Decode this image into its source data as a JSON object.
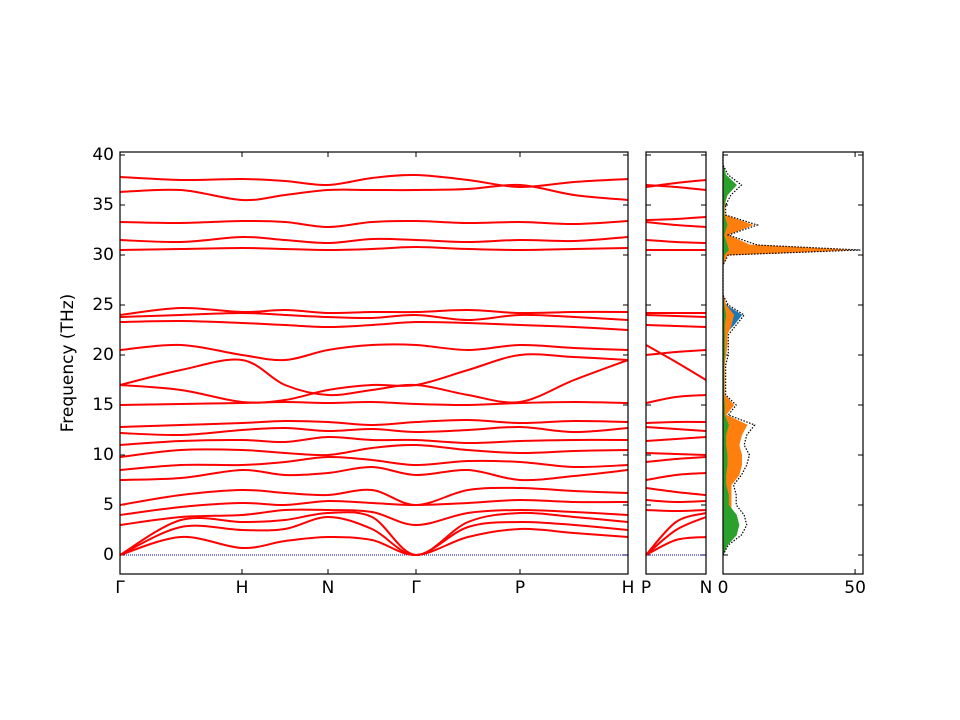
{
  "chart_data": [
    {
      "type": "line",
      "ylabel": "Frequency (THz)",
      "color": "#ff0000",
      "zero_line_color": "#0000cc",
      "x": [
        0,
        0.61,
        1.22,
        1.65,
        2.08,
        2.52,
        2.96,
        3.48,
        4.0,
        4.54,
        5.08
      ],
      "xlim": [
        0,
        5.08
      ],
      "xticks": [
        {
          "value": 0,
          "label": "Γ"
        },
        {
          "value": 1.22,
          "label": "H"
        },
        {
          "value": 2.08,
          "label": "N"
        },
        {
          "value": 2.96,
          "label": "Γ"
        },
        {
          "value": 4.0,
          "label": "P"
        },
        {
          "value": 5.08,
          "label": "H"
        }
      ],
      "ylim": [
        -1.9,
        40.3
      ],
      "yticks": [
        0,
        5,
        10,
        15,
        20,
        25,
        30,
        35,
        40
      ],
      "series": [
        {
          "values": [
            0,
            1.8,
            0.7,
            1.4,
            1.8,
            1.5,
            0,
            1.8,
            2.6,
            2.2,
            1.8
          ]
        },
        {
          "values": [
            0,
            2.8,
            2.5,
            2.6,
            3.8,
            2.6,
            0,
            2.8,
            3.3,
            3,
            2.5
          ]
        },
        {
          "values": [
            0,
            3.5,
            3.3,
            3.5,
            4.2,
            3.8,
            0,
            3.3,
            4.2,
            3.8,
            3.3
          ]
        },
        {
          "values": [
            3,
            3.8,
            4,
            4.5,
            4.5,
            4.3,
            3,
            4.2,
            4.5,
            4.3,
            4
          ]
        },
        {
          "values": [
            4,
            4.8,
            5.2,
            5,
            5.4,
            5.2,
            5,
            5.2,
            5.5,
            5.3,
            5.3
          ]
        },
        {
          "values": [
            5,
            6,
            6.5,
            6.2,
            6,
            6.5,
            5,
            6.5,
            6.7,
            6.4,
            6.2
          ]
        },
        {
          "values": [
            7.5,
            7.7,
            8.5,
            8,
            8.2,
            8.8,
            8,
            8.5,
            7.5,
            7.9,
            8.5
          ]
        },
        {
          "values": [
            8.5,
            9,
            9,
            9.3,
            9.8,
            9.5,
            9,
            9.4,
            9.3,
            8.8,
            9
          ]
        },
        {
          "values": [
            9.8,
            10.5,
            10.5,
            10.2,
            10,
            10.7,
            11,
            10.5,
            10.2,
            10.4,
            10.5
          ]
        },
        {
          "values": [
            11,
            11.4,
            11.5,
            11.3,
            11.8,
            11.5,
            11.5,
            11.2,
            11.4,
            11.5,
            11.5
          ]
        },
        {
          "values": [
            12.2,
            12,
            12.5,
            12.7,
            12.4,
            12.6,
            12.3,
            12.5,
            12.8,
            12.3,
            12.7
          ]
        },
        {
          "values": [
            12.8,
            13,
            13.2,
            13.4,
            13.3,
            13,
            13.3,
            13.5,
            13.2,
            13.4,
            13.3
          ]
        },
        {
          "values": [
            15,
            15.1,
            15.2,
            15.3,
            15.2,
            15.3,
            15.1,
            15,
            15.2,
            15.3,
            15.2
          ]
        },
        {
          "values": [
            17,
            18.5,
            19.5,
            17,
            16,
            16.5,
            17,
            16,
            15.3,
            17.5,
            19.5
          ]
        },
        {
          "values": [
            17,
            16.5,
            15.3,
            15.5,
            16.5,
            17,
            17,
            18.5,
            20,
            19.8,
            19.5
          ]
        },
        {
          "values": [
            20.5,
            21,
            20,
            19.5,
            20.5,
            21,
            21,
            20.5,
            21,
            20.7,
            20.5
          ]
        },
        {
          "values": [
            23.3,
            23.4,
            23.2,
            23,
            22.8,
            23,
            23.3,
            23.2,
            23,
            22.8,
            22.5
          ]
        },
        {
          "values": [
            23.8,
            24,
            24.2,
            24,
            23.8,
            23.7,
            24,
            23.5,
            24,
            23.8,
            23.5
          ]
        },
        {
          "values": [
            24,
            24.7,
            24.3,
            24.5,
            24.2,
            24.3,
            24.3,
            24.5,
            24.2,
            24.3,
            24.3
          ]
        },
        {
          "values": [
            30.5,
            30.6,
            30.7,
            30.6,
            30.5,
            30.6,
            30.8,
            30.6,
            30.5,
            30.6,
            30.7
          ]
        },
        {
          "values": [
            31.5,
            31.3,
            31.8,
            31.5,
            31.2,
            31.6,
            31.5,
            31.3,
            31.5,
            31.4,
            31.8
          ]
        },
        {
          "values": [
            33.3,
            33.2,
            33.4,
            33.3,
            32.8,
            33.3,
            33.4,
            33.2,
            33.3,
            33.1,
            33.4
          ]
        },
        {
          "values": [
            36.3,
            36.5,
            35.5,
            36,
            36.5,
            36.5,
            36.5,
            36.6,
            37,
            36,
            35.5
          ]
        },
        {
          "values": [
            37.8,
            37.5,
            37.6,
            37.4,
            37,
            37.7,
            38,
            37.5,
            36.8,
            37.3,
            37.6
          ]
        }
      ]
    },
    {
      "type": "line",
      "color": "#ff0000",
      "zero_line_color": "#0000cc",
      "x": [
        0,
        0.5,
        1
      ],
      "xlim": [
        0,
        1
      ],
      "xticks": [
        {
          "value": 0,
          "label": "P"
        },
        {
          "value": 1,
          "label": "N"
        }
      ],
      "series": [
        {
          "values": [
            0,
            1.5,
            1.8
          ]
        },
        {
          "values": [
            0,
            2.5,
            3.8
          ]
        },
        {
          "values": [
            0,
            3.3,
            4.2
          ]
        },
        {
          "values": [
            4.5,
            4.4,
            4.5
          ]
        },
        {
          "values": [
            5.5,
            5.3,
            5.4
          ]
        },
        {
          "values": [
            6.7,
            6.3,
            6
          ]
        },
        {
          "values": [
            7.5,
            8,
            8.2
          ]
        },
        {
          "values": [
            9.3,
            9.6,
            9.8
          ]
        },
        {
          "values": [
            10.2,
            10.1,
            10
          ]
        },
        {
          "values": [
            11.4,
            11.6,
            11.8
          ]
        },
        {
          "values": [
            12.8,
            12.6,
            12.4
          ]
        },
        {
          "values": [
            13.2,
            13.3,
            13.3
          ]
        },
        {
          "values": [
            15.2,
            15.8,
            16
          ]
        },
        {
          "values": [
            20,
            20.3,
            20.5
          ]
        },
        {
          "values": [
            21,
            19.3,
            17.5
          ]
        },
        {
          "values": [
            23,
            22.9,
            22.8
          ]
        },
        {
          "values": [
            24,
            23.9,
            23.8
          ]
        },
        {
          "values": [
            24.2,
            24.2,
            24.2
          ]
        },
        {
          "values": [
            30.5,
            30.5,
            30.5
          ]
        },
        {
          "values": [
            31.5,
            31.3,
            31.2
          ]
        },
        {
          "values": [
            33.3,
            33,
            32.8
          ]
        },
        {
          "values": [
            33.5,
            33.6,
            33.8
          ]
        },
        {
          "values": [
            37,
            36.8,
            36.5
          ]
        },
        {
          "values": [
            36.8,
            37.2,
            37.5
          ]
        }
      ]
    },
    {
      "type": "dos",
      "xlim": [
        0,
        53
      ],
      "xticks": [
        0,
        50
      ],
      "y": [
        0,
        1,
        2,
        3,
        4,
        5,
        6,
        7,
        8,
        9,
        10,
        11,
        12,
        13,
        14,
        15,
        16,
        17,
        18,
        19,
        20,
        21,
        22,
        23,
        24,
        25,
        26,
        27,
        28,
        29,
        30,
        30.5,
        31,
        32,
        33,
        34,
        35,
        36,
        37,
        38,
        39,
        40
      ],
      "series": [
        {
          "color": "#000000",
          "values": [
            0,
            2,
            7,
            9,
            8,
            5,
            5,
            4,
            7,
            9,
            10,
            8,
            9,
            12,
            2,
            5,
            1,
            1,
            1,
            1,
            2,
            2,
            2,
            5,
            8,
            2,
            0,
            0,
            0,
            0,
            2,
            52,
            13,
            2,
            13,
            1,
            1,
            3,
            7,
            2,
            0,
            0
          ]
        },
        {
          "color": "#1f77b4",
          "values": [
            0,
            0.5,
            1,
            1,
            1,
            0.5,
            1,
            1,
            1,
            2,
            2,
            2,
            2,
            2,
            0.5,
            0.5,
            0.3,
            0.3,
            0.3,
            0.3,
            0.3,
            0.3,
            0.3,
            4,
            7,
            1,
            0,
            0,
            0,
            0,
            0.5,
            3,
            1,
            0.5,
            1,
            0.3,
            0.3,
            0.5,
            1,
            0.5,
            0,
            0
          ]
        },
        {
          "color": "#ff7f0e",
          "values": [
            0,
            1,
            2,
            3,
            3,
            3,
            3,
            3,
            6,
            7,
            7,
            6,
            7,
            9,
            1,
            4,
            0.5,
            0.5,
            0.5,
            0.5,
            1,
            1.5,
            1.5,
            3,
            4,
            1,
            0,
            0,
            0,
            0,
            1.5,
            48,
            10,
            1.5,
            11,
            0.5,
            0.5,
            1.5,
            2,
            1,
            0,
            0
          ]
        },
        {
          "color": "#2ca02c",
          "values": [
            0,
            1.5,
            5,
            6,
            5,
            2,
            2,
            1,
            1,
            1.5,
            1.5,
            1,
            1,
            2,
            0.5,
            0.5,
            0.2,
            0.2,
            0.2,
            0.2,
            0.5,
            0.5,
            0.5,
            0.5,
            1,
            0.3,
            0,
            0,
            0,
            0,
            0.3,
            2,
            1.5,
            0.3,
            1.5,
            0.3,
            0.3,
            1.5,
            5,
            1,
            0,
            0
          ]
        }
      ]
    }
  ]
}
